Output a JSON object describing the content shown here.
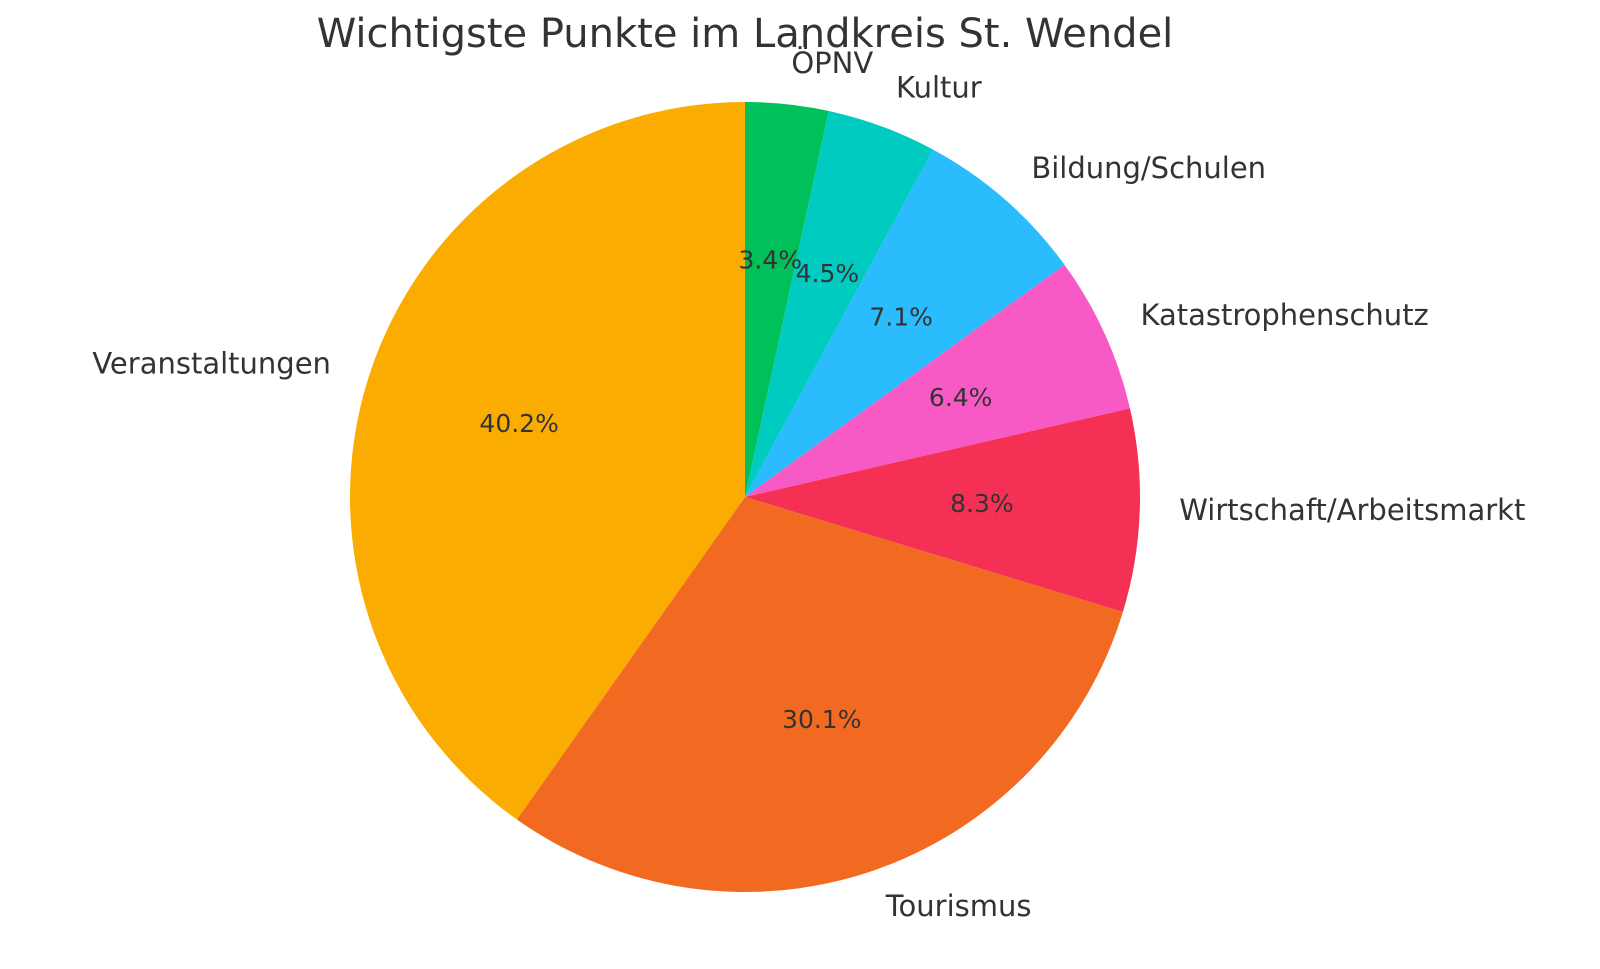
{
  "chart_data": {
    "type": "pie",
    "title": "Wichtigste Punkte im Landkreis St. Wendel",
    "categories": [
      "ÖPNV",
      "Kultur",
      "Bildung/Schulen",
      "Katastrophenschutz",
      "Wirtschaft/Arbeitsmarkt",
      "Tourismus",
      "Veranstaltungen"
    ],
    "values": [
      3.4,
      4.5,
      7.1,
      6.4,
      8.3,
      30.1,
      40.2
    ],
    "value_labels": [
      "3.4%",
      "4.5%",
      "7.1%",
      "6.4%",
      "8.3%",
      "30.1%",
      "40.2%"
    ],
    "colors": [
      "#00c05a",
      "#00cbc0",
      "#2abcfc",
      "#f85ac5",
      "#f43055",
      "#f26a21",
      "#fbac00"
    ]
  }
}
